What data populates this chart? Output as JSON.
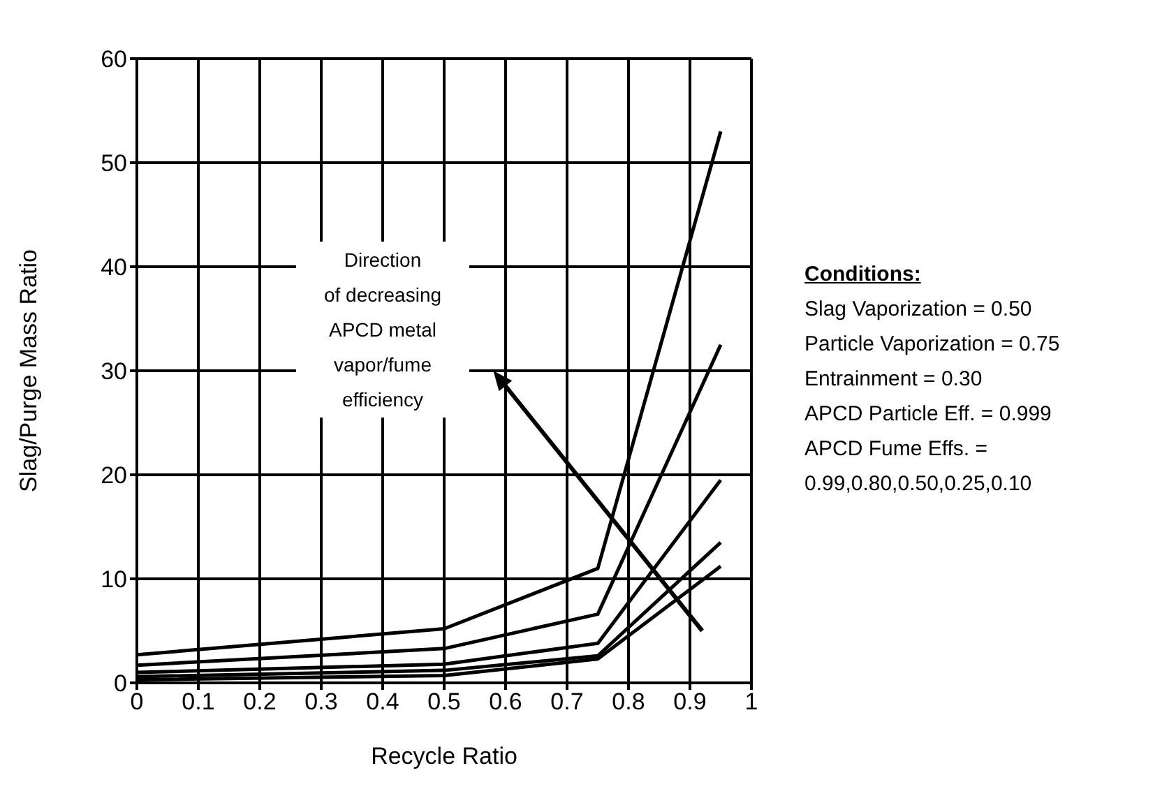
{
  "chart_data": {
    "type": "line",
    "xlabel": "Recycle Ratio",
    "ylabel": "Slag/Purge Mass Ratio",
    "x": [
      0,
      0.5,
      0.75,
      0.95
    ],
    "series": [
      {
        "color": "#000000",
        "values": [
          2.7,
          5.2,
          11.0,
          53
        ]
      },
      {
        "color": "#000000",
        "values": [
          1.7,
          3.3,
          6.6,
          32.5
        ]
      },
      {
        "color": "#000000",
        "values": [
          1.0,
          1.8,
          3.8,
          19.5
        ]
      },
      {
        "color": "#000000",
        "values": [
          0.6,
          1.2,
          2.6,
          13.5
        ]
      },
      {
        "color": "#000000",
        "values": [
          0.3,
          0.7,
          2.3,
          11.2
        ]
      }
    ],
    "xlim": [
      0,
      1
    ],
    "xticks": [
      0,
      0.1,
      0.2,
      0.3,
      0.4,
      0.5,
      0.6,
      0.7,
      0.8,
      0.9,
      1
    ],
    "ylim": [
      0,
      60
    ],
    "yticks": [
      0,
      10,
      20,
      30,
      40,
      50,
      60
    ],
    "grid": true,
    "marker": "none",
    "line_style": "solid",
    "annotations": [
      "Direction\nof decreasing\nAPCD metal\nvapor/fume\nefficiency",
      "Conditions:",
      "Slag Vaporization = 0.50",
      "Particle Vaporization = 0.75",
      "Entrainment = 0.30",
      "APCD Particle Eff. = 0.999",
      "APCD Fume Effs. =",
      "0.99,0.80,0.50,0.25,0.10"
    ]
  }
}
